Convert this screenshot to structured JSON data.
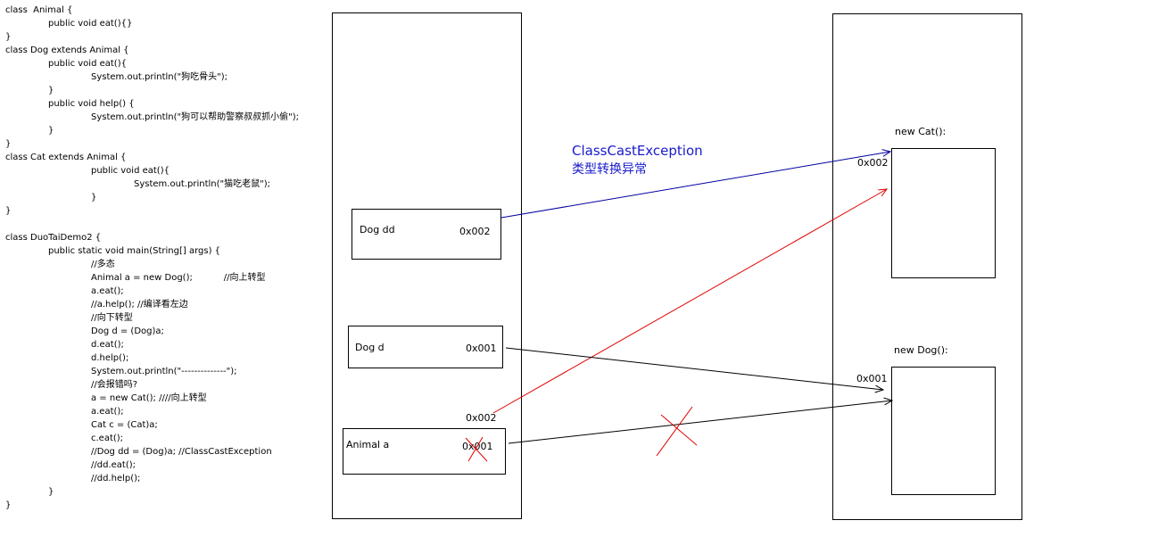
{
  "code": [
    "class  Animal {",
    "public void eat(){}",
    "}",
    "class Dog extends Animal {",
    "public void eat(){",
    "System.out.println(\"狗吃骨头\");",
    "}",
    "public void help() {",
    "System.out.println(\"狗可以帮助警察叔叔抓小偷\");",
    "}",
    "}",
    "class Cat extends Animal {",
    "public void eat(){",
    "System.out.println(\"猫吃老鼠\");",
    "}",
    "}",
    "",
    "class DuoTaiDemo2 {",
    "public static void main(String[] args) {",
    "//多态",
    "Animal a = new Dog();           //向上转型",
    "a.eat();",
    "//a.help(); //编译看左边",
    "//向下转型",
    "Dog d = (Dog)a;",
    "d.eat();",
    "d.help();",
    "System.out.println(\"--------------\");",
    "//会报错吗?",
    "a = new Cat(); ////向上转型",
    "a.eat();",
    "Cat c = (Cat)a;",
    "c.eat();",
    "//Dog dd = (Dog)a; //ClassCastException",
    "//dd.eat();",
    "//dd.help();",
    "}",
    "}"
  ],
  "stack": {
    "dog_dd": {
      "name": "Dog dd",
      "addr": "0x002"
    },
    "dog_d": {
      "name": "Dog d",
      "addr": "0x001"
    },
    "animal_a": {
      "name": "Animal a",
      "addr_old": "0x001",
      "addr_new": "0x002"
    }
  },
  "heap": {
    "cat": {
      "title": "new Cat():",
      "addr": "0x002"
    },
    "dog": {
      "title": "new Dog():",
      "addr": "0x001"
    }
  },
  "exception": {
    "name": "ClassCastException",
    "desc": "类型转换异常",
    "color": "#1a1acd"
  },
  "colors": {
    "blue_arrow": "#0000a0",
    "red_arrow": "#e00000",
    "black": "#000000"
  }
}
